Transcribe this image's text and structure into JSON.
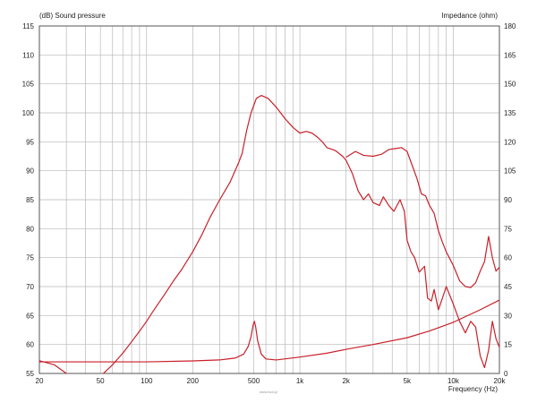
{
  "chart_data": {
    "type": "line",
    "y_left_label": "(dB)  Sound pressure",
    "y_right_label": "Impedance  (ohm)",
    "x_label": "Frequency  (Hz)",
    "x_scale": "log",
    "x_range": [
      20,
      20000
    ],
    "y_left_range": [
      55,
      115
    ],
    "y_right_range": [
      0,
      180
    ],
    "x_ticks": [
      {
        "v": 20,
        "label": "20"
      },
      {
        "v": 50,
        "label": "50"
      },
      {
        "v": 100,
        "label": "100"
      },
      {
        "v": 200,
        "label": "200"
      },
      {
        "v": 500,
        "label": "500"
      },
      {
        "v": 1000,
        "label": "1k"
      },
      {
        "v": 2000,
        "label": "2k"
      },
      {
        "v": 5000,
        "label": "5k"
      },
      {
        "v": 10000,
        "label": "10k"
      },
      {
        "v": 20000,
        "label": "20k"
      }
    ],
    "y_left_ticks": [
      55,
      60,
      65,
      70,
      75,
      80,
      85,
      90,
      95,
      100,
      105,
      110,
      115
    ],
    "y_right_ticks": [
      0,
      15,
      30,
      45,
      60,
      75,
      90,
      105,
      120,
      135,
      150,
      165,
      180
    ],
    "grid": true,
    "line_color": "#c8202a",
    "watermark": "www.bzd.pl",
    "series": [
      {
        "axis": "left",
        "points": [
          [
            20,
            57.2
          ],
          [
            25,
            56.5
          ],
          [
            30,
            55
          ],
          [
            40,
            53
          ],
          [
            50,
            54.5
          ],
          [
            60,
            56.5
          ],
          [
            70,
            58.5
          ],
          [
            80,
            60.5
          ],
          [
            90,
            62.3
          ],
          [
            100,
            64
          ],
          [
            110,
            65.7
          ],
          [
            130,
            68.5
          ],
          [
            150,
            71
          ],
          [
            170,
            73
          ],
          [
            200,
            76
          ],
          [
            230,
            79
          ],
          [
            260,
            82
          ],
          [
            300,
            85
          ],
          [
            350,
            88
          ],
          [
            400,
            91.5
          ],
          [
            420,
            93
          ],
          [
            450,
            97
          ],
          [
            480,
            100
          ],
          [
            520,
            102.5
          ],
          [
            560,
            103
          ],
          [
            620,
            102.5
          ],
          [
            700,
            101
          ],
          [
            800,
            99
          ],
          [
            900,
            97.5
          ],
          [
            1000,
            96.5
          ],
          [
            1100,
            96.8
          ],
          [
            1200,
            96.5
          ],
          [
            1300,
            95.8
          ],
          [
            1400,
            95
          ],
          [
            1500,
            94
          ],
          [
            1700,
            93.5
          ],
          [
            1900,
            92.5
          ],
          [
            2000,
            91.8
          ],
          [
            2200,
            89.5
          ],
          [
            2400,
            86.5
          ],
          [
            2600,
            85
          ],
          [
            2800,
            86
          ],
          [
            3000,
            84.5
          ],
          [
            3300,
            84
          ],
          [
            3500,
            85.5
          ],
          [
            3800,
            84
          ],
          [
            4100,
            83
          ],
          [
            4500,
            85
          ],
          [
            4800,
            83
          ],
          [
            5000,
            78
          ],
          [
            5300,
            76
          ],
          [
            5600,
            75
          ],
          [
            6000,
            72.5
          ],
          [
            6500,
            73.5
          ],
          [
            6800,
            68
          ],
          [
            7200,
            67.5
          ],
          [
            7500,
            69.5
          ],
          [
            8000,
            66
          ],
          [
            8500,
            68
          ],
          [
            9000,
            70
          ],
          [
            10000,
            67
          ],
          [
            11000,
            64
          ],
          [
            12000,
            62
          ],
          [
            13000,
            64
          ],
          [
            14000,
            63
          ],
          [
            15000,
            58
          ],
          [
            16000,
            56
          ],
          [
            17000,
            59
          ],
          [
            18000,
            64
          ],
          [
            19000,
            61
          ],
          [
            20000,
            59.5
          ]
        ]
      },
      {
        "axis": "right",
        "points": [
          [
            20,
            6
          ],
          [
            50,
            6
          ],
          [
            100,
            6
          ],
          [
            200,
            6.5
          ],
          [
            300,
            7
          ],
          [
            380,
            8
          ],
          [
            430,
            10
          ],
          [
            460,
            14
          ],
          [
            480,
            19
          ],
          [
            495,
            25
          ],
          [
            505,
            27
          ],
          [
            515,
            24
          ],
          [
            530,
            17
          ],
          [
            560,
            10
          ],
          [
            600,
            7.5
          ],
          [
            700,
            7
          ],
          [
            1000,
            8.5
          ],
          [
            1500,
            10.5
          ],
          [
            2000,
            12.5
          ],
          [
            3000,
            15
          ],
          [
            5000,
            18.5
          ],
          [
            7000,
            22
          ],
          [
            10000,
            26.5
          ],
          [
            15000,
            33
          ],
          [
            20000,
            38
          ]
        ]
      },
      {
        "axis": "right",
        "points": [
          [
            2000,
            112
          ],
          [
            2300,
            115
          ],
          [
            2600,
            113
          ],
          [
            3000,
            112.5
          ],
          [
            3400,
            113.5
          ],
          [
            3800,
            116
          ],
          [
            4200,
            116.5
          ],
          [
            4600,
            117
          ],
          [
            5000,
            115
          ],
          [
            5500,
            106
          ],
          [
            5800,
            101
          ],
          [
            6200,
            93
          ],
          [
            6600,
            92
          ],
          [
            7000,
            87
          ],
          [
            7500,
            83
          ],
          [
            8000,
            74
          ],
          [
            8500,
            68
          ],
          [
            9000,
            63
          ],
          [
            10000,
            56
          ],
          [
            11000,
            48
          ],
          [
            12000,
            45
          ],
          [
            13000,
            44.5
          ],
          [
            14000,
            47
          ],
          [
            15000,
            53
          ],
          [
            16000,
            58
          ],
          [
            17000,
            71
          ],
          [
            18000,
            60
          ],
          [
            19000,
            53
          ],
          [
            20000,
            55
          ]
        ]
      }
    ]
  }
}
